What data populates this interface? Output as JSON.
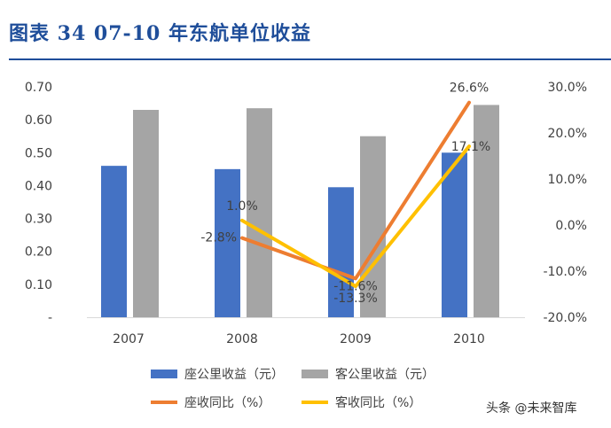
{
  "header": {
    "title": "图表  34    07-10 年东航单位收益"
  },
  "chart_data": {
    "type": "bar+line",
    "categories": [
      "2007",
      "2008",
      "2009",
      "2010"
    ],
    "left_axis": {
      "ylim": [
        0,
        0.7
      ],
      "ticks": [
        0,
        0.1,
        0.2,
        0.3,
        0.4,
        0.5,
        0.6,
        0.7
      ],
      "tick_labels": [
        "-",
        "0.10",
        "0.20",
        "0.30",
        "0.40",
        "0.50",
        "0.60",
        "0.70"
      ]
    },
    "right_axis": {
      "ylim": [
        -20,
        30
      ],
      "ticks": [
        -20,
        -10,
        0,
        10,
        20,
        30
      ],
      "tick_labels": [
        "-20.0%",
        "-10.0%",
        "0.0%",
        "10.0%",
        "20.0%",
        "30.0%"
      ]
    },
    "bar_series": [
      {
        "name": "座公里收益（元）",
        "color": "#4472c4",
        "values": [
          0.46,
          0.45,
          0.395,
          0.5
        ]
      },
      {
        "name": "客公里收益（元）",
        "color": "#a5a5a5",
        "values": [
          0.63,
          0.635,
          0.55,
          0.645
        ]
      }
    ],
    "line_series": [
      {
        "name": "座收同比（%）",
        "color": "#ed7d31",
        "values": [
          null,
          -2.8,
          -11.6,
          26.6
        ],
        "labels": [
          "",
          "-2.8%",
          "-11.6%",
          "26.6%"
        ]
      },
      {
        "name": "客收同比（%）",
        "color": "#ffc000",
        "values": [
          null,
          1.0,
          -13.3,
          17.1
        ],
        "labels": [
          "",
          "1.0%",
          "-13.3%",
          "17.1%"
        ]
      }
    ],
    "legend_position": "bottom"
  },
  "watermark": {
    "text": "头条 @未来智库"
  }
}
